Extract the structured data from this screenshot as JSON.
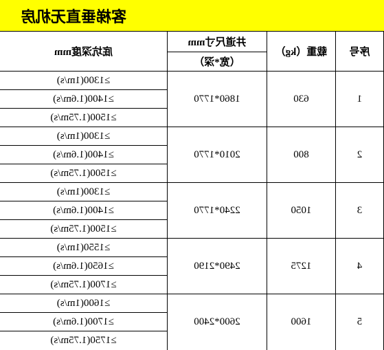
{
  "title": "客梯垂直无机房",
  "headers": {
    "seq": "序号",
    "load": "载重（kg）",
    "shaft_top": "井道尺寸mm",
    "shaft_sub": "（宽*深）",
    "pit": "底坑深度mm"
  },
  "rows": [
    {
      "seq": "1",
      "load": "630",
      "shaft": "1860*1770",
      "pits": [
        "≥1300(1m/s)",
        "≥1400(1.6m/s)",
        "≥1500(1.75m/s)"
      ]
    },
    {
      "seq": "2",
      "load": "800",
      "shaft": "2010*1770",
      "pits": [
        "≥1300(1m/s)",
        "≥1400(1.6m/s)",
        "≥1500(1.75m/s)"
      ]
    },
    {
      "seq": "3",
      "load": "1050",
      "shaft": "2240*1770",
      "pits": [
        "≥1300(1m/s)",
        "≥1400(1.6m/s)",
        "≥1500(1.75m/s)"
      ]
    },
    {
      "seq": "4",
      "load": "1275",
      "shaft": "2490*2190",
      "pits": [
        "≥1550(1m/s)",
        "≥1650(1.6m/s)",
        "≥1700(1.75m/s)"
      ]
    },
    {
      "seq": "5",
      "load": "1600",
      "shaft": "2600*2400",
      "pits": [
        "≥1600(1m/s)",
        "≥1700(1.6m/s)",
        "≥1750(1.75m/s)"
      ]
    }
  ]
}
